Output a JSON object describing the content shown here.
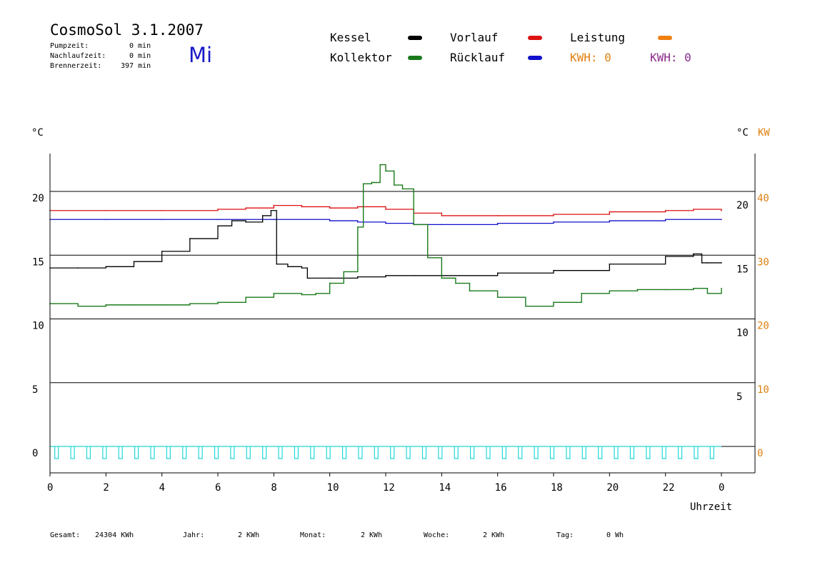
{
  "header": {
    "title": "CosmoSol 3.1.2007",
    "pumpzeit_label": "Pumpzeit:",
    "pumpzeit_value": "0 min",
    "nachlaufzeit_label": "Nachlaufzeit:",
    "nachlaufzeit_value": "0 min",
    "brennerzeit_label": "Brennerzeit:",
    "brennerzeit_value": "397 min",
    "weekday": "Mi"
  },
  "legend": {
    "kessel": "Kessel",
    "kollektor": "Kollektor",
    "vorlauf": "Vorlauf",
    "ruecklauf": "Rücklauf",
    "leistung": "Leistung",
    "kwh_orange": "KWH: 0",
    "kwh_purple": "KWH: 0"
  },
  "colors": {
    "kessel": "#000000",
    "kollektor": "#1a7a1a",
    "vorlauf": "#dd1111",
    "ruecklauf": "#1010cc",
    "leistung": "#f08010",
    "kwh_purple": "#8a2a8a",
    "pump": "#22d8d8",
    "grid": "#000000",
    "right_axis_kw": "#e08010"
  },
  "footer": {
    "gesamt_label": "Gesamt:",
    "gesamt_value": "24304 KWh",
    "jahr_label": "Jahr:",
    "jahr_value": "2 KWh",
    "monat_label": "Monat:",
    "monat_value": "2 KWh",
    "woche_label": "Woche:",
    "woche_value": "2 KWh",
    "tag_label": "Tag:",
    "tag_value": "0 Wh"
  },
  "chart_data": {
    "type": "line",
    "xlabel": "Uhrzeit",
    "ylabel_left": "°C",
    "ylabel_right": "°C",
    "ylabel_right2": "KW",
    "xlim": [
      0,
      24
    ],
    "ylim": [
      -3,
      23.5
    ],
    "x_ticks": [
      "0",
      "2",
      "4",
      "6",
      "8",
      "10",
      "12",
      "14",
      "16",
      "18",
      "20",
      "22",
      "0"
    ],
    "y_ticks_left": [
      "0",
      "5",
      "10",
      "15",
      "20"
    ],
    "y_ticks_right": [
      "5",
      "10",
      "15",
      "20"
    ],
    "y_ticks_kw": [
      "0",
      "10",
      "20",
      "30",
      "40"
    ],
    "grid": "horizontal",
    "series": [
      {
        "name": "Vorlauf",
        "color": "#dd1111",
        "x": [
          0,
          2,
          4,
          6,
          7,
          8,
          9,
          10,
          11,
          12,
          13,
          14,
          16,
          18,
          20,
          22,
          23,
          24
        ],
        "y": [
          18.5,
          18.5,
          18.5,
          18.6,
          18.7,
          18.9,
          18.8,
          18.7,
          18.8,
          18.6,
          18.3,
          18.1,
          18.1,
          18.2,
          18.4,
          18.5,
          18.6,
          18.5
        ]
      },
      {
        "name": "Rücklauf",
        "color": "#1010cc",
        "x": [
          0,
          2,
          4,
          6,
          8,
          10,
          11,
          12,
          13,
          14,
          16,
          18,
          20,
          22,
          24
        ],
        "y": [
          17.8,
          17.8,
          17.8,
          17.8,
          17.8,
          17.7,
          17.6,
          17.5,
          17.4,
          17.4,
          17.5,
          17.6,
          17.7,
          17.8,
          17.8
        ]
      },
      {
        "name": "Kessel",
        "color": "#000000",
        "x": [
          0,
          1,
          2,
          3,
          4,
          5,
          6,
          6.5,
          7,
          7.6,
          7.9,
          8.1,
          8.5,
          9,
          9.2,
          10,
          11,
          12,
          13,
          14,
          16,
          18,
          20,
          22,
          23,
          23.3,
          23.5,
          24
        ],
        "y": [
          14.0,
          14.0,
          14.1,
          14.5,
          15.3,
          16.3,
          17.3,
          17.7,
          17.6,
          18.1,
          18.5,
          14.3,
          14.1,
          14.0,
          13.2,
          13.2,
          13.3,
          13.4,
          13.4,
          13.4,
          13.6,
          13.8,
          14.3,
          14.9,
          15.1,
          14.4,
          14.4,
          14.4
        ]
      },
      {
        "name": "Kollektor",
        "color": "#1a7a1a",
        "x": [
          0,
          1,
          2,
          3,
          4,
          5,
          6,
          7,
          8,
          9,
          9.5,
          10,
          10.5,
          11,
          11.2,
          11.5,
          11.8,
          12,
          12.3,
          12.6,
          13,
          13.5,
          14,
          14.5,
          15,
          16,
          17,
          18,
          19,
          20,
          21,
          22,
          23,
          23.5,
          24
        ],
        "y": [
          11.2,
          11.0,
          11.1,
          11.1,
          11.1,
          11.2,
          11.3,
          11.7,
          12.0,
          11.9,
          12.0,
          12.8,
          13.7,
          17.2,
          20.6,
          20.7,
          22.1,
          21.6,
          20.5,
          20.2,
          17.4,
          14.8,
          13.2,
          12.8,
          12.2,
          11.7,
          11.0,
          11.3,
          12.0,
          12.2,
          12.3,
          12.3,
          12.4,
          12.0,
          12.4
        ]
      }
    ],
    "pump_marks": 42
  }
}
